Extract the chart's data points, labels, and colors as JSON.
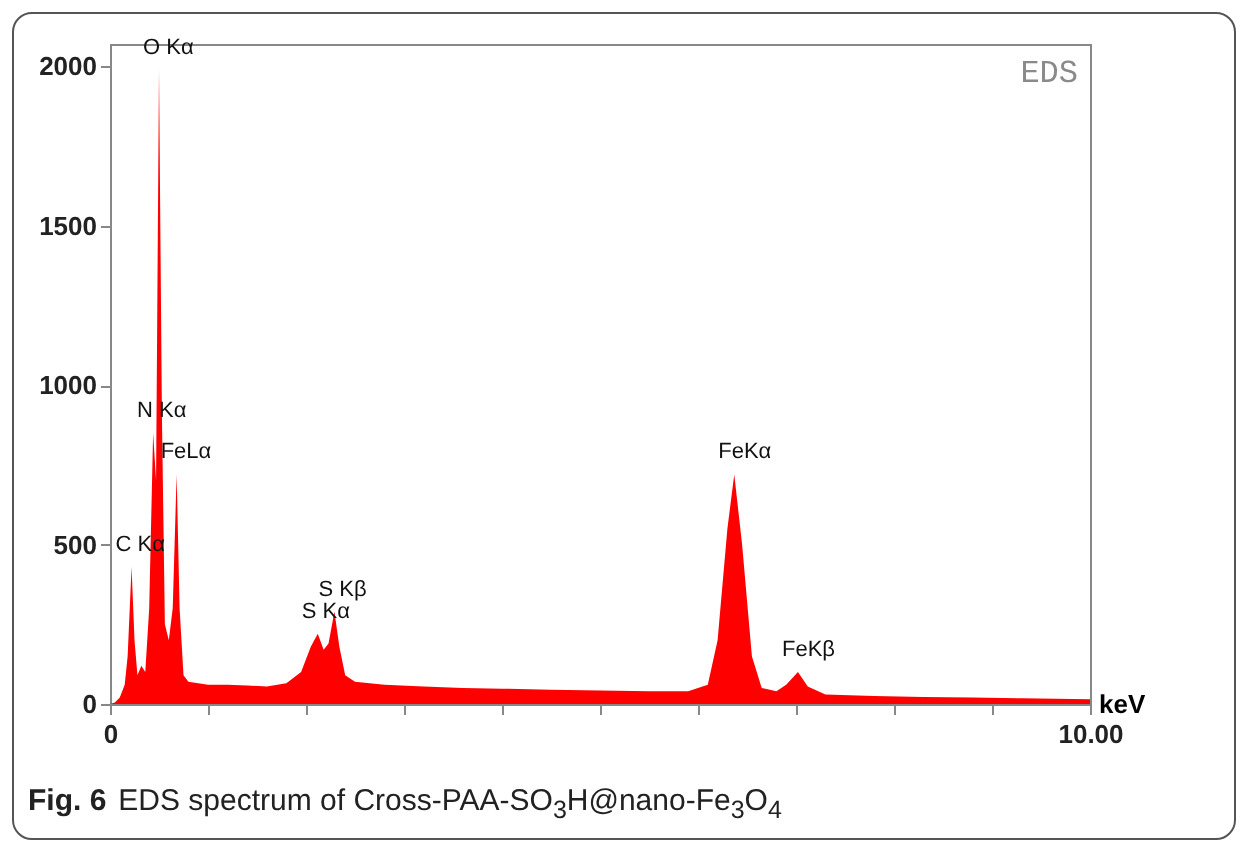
{
  "chart_data": {
    "type": "area",
    "xlabel": "keV",
    "color": "#ff0000",
    "x": [
      0,
      0.05,
      0.1,
      0.15,
      0.18,
      0.22,
      0.25,
      0.28,
      0.32,
      0.36,
      0.4,
      0.44,
      0.47,
      0.5,
      0.53,
      0.56,
      0.6,
      0.64,
      0.68,
      0.71,
      0.75,
      0.8,
      0.9,
      1.0,
      1.2,
      1.4,
      1.6,
      1.8,
      1.95,
      2.05,
      2.12,
      2.18,
      2.23,
      2.29,
      2.34,
      2.4,
      2.5,
      2.8,
      3.2,
      3.6,
      4.0,
      4.5,
      5.0,
      5.5,
      5.9,
      6.1,
      6.2,
      6.3,
      6.37,
      6.45,
      6.55,
      6.65,
      6.8,
      6.9,
      7.02,
      7.12,
      7.3,
      7.8,
      8.3,
      8.8,
      9.3,
      10.0
    ],
    "values": [
      0,
      5,
      20,
      60,
      150,
      430,
      200,
      90,
      120,
      100,
      300,
      850,
      700,
      1990,
      900,
      250,
      200,
      300,
      720,
      300,
      90,
      70,
      65,
      60,
      60,
      58,
      55,
      65,
      100,
      180,
      220,
      170,
      190,
      290,
      180,
      90,
      70,
      60,
      55,
      50,
      48,
      45,
      42,
      40,
      40,
      60,
      200,
      550,
      720,
      500,
      150,
      50,
      40,
      60,
      100,
      55,
      30,
      25,
      22,
      20,
      18,
      15
    ],
    "xlim": [
      0,
      10
    ],
    "xticks": [
      0,
      {
        "value": 1,
        "label": null
      },
      {
        "value": 2,
        "label": null
      },
      {
        "value": 3,
        "label": null
      },
      {
        "value": 4,
        "label": null
      },
      {
        "value": 5,
        "label": null
      },
      {
        "value": 6,
        "label": null
      },
      {
        "value": 7,
        "label": null
      },
      {
        "value": 8,
        "label": null
      },
      {
        "value": 9,
        "label": null
      },
      {
        "value": 10,
        "label": "10.00"
      }
    ],
    "ylim": [
      0,
      2070
    ],
    "yticks": [
      0,
      500,
      1000,
      1500,
      2000
    ],
    "annotations": [
      "EDS",
      "Fig. 6",
      "EDS spectrum of Cross-PAA-SO$_{3}$H@nano-Fe$_{3}$O$_{4}$",
      {
        "text": "O Kα",
        "x": 0.5,
        "y": 1990
      },
      {
        "text": "N Kα",
        "x": 0.44,
        "y": 850
      },
      {
        "text": "FeLα",
        "x": 0.68,
        "y": 720
      },
      {
        "text": "C Kα",
        "x": 0.22,
        "y": 430
      },
      {
        "text": "S Kβ",
        "x": 2.29,
        "y": 290
      },
      {
        "text": "S Kα",
        "x": 2.12,
        "y": 220
      },
      {
        "text": "FeKα",
        "x": 6.37,
        "y": 720
      },
      {
        "text": "FeKβ",
        "x": 7.02,
        "y": 100
      }
    ]
  }
}
